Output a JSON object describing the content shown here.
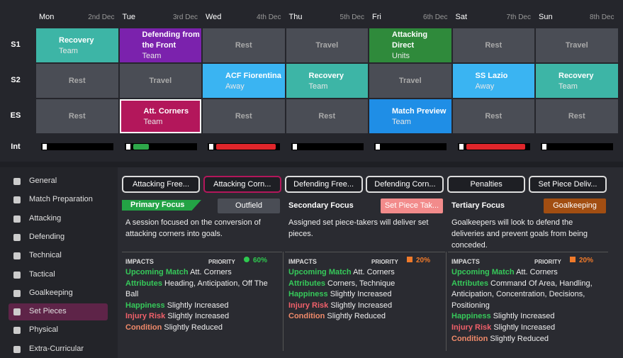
{
  "schedule": {
    "days": [
      {
        "name": "Mon",
        "date": "2nd Dec"
      },
      {
        "name": "Tue",
        "date": "3rd Dec"
      },
      {
        "name": "Wed",
        "date": "4th Dec"
      },
      {
        "name": "Thu",
        "date": "5th Dec"
      },
      {
        "name": "Fri",
        "date": "6th Dec"
      },
      {
        "name": "Sat",
        "date": "7th Dec"
      },
      {
        "name": "Sun",
        "date": "8th Dec"
      }
    ],
    "rows": [
      {
        "label": "S1",
        "cells": [
          {
            "title": "Recovery",
            "sub": "Team",
            "color": "#3db5a6"
          },
          {
            "title": "Defending from the Front",
            "sub": "Team",
            "color": "#7b22ad"
          },
          {
            "title": "Rest",
            "color": "#4a4d55"
          },
          {
            "title": "Travel",
            "color": "#4a4d55"
          },
          {
            "title": "Attacking Direct",
            "sub": "Units",
            "color": "#2f8a3b"
          },
          {
            "title": "Rest",
            "color": "#4a4d55"
          },
          {
            "title": "Travel",
            "color": "#4a4d55"
          }
        ]
      },
      {
        "label": "S2",
        "cells": [
          {
            "title": "Rest",
            "color": "#4a4d55"
          },
          {
            "title": "Travel",
            "color": "#4a4d55"
          },
          {
            "title": "ACF Fiorentina",
            "sub": "Away",
            "color": "#3ab4f2"
          },
          {
            "title": "Recovery",
            "sub": "Team",
            "color": "#3db5a6"
          },
          {
            "title": "Travel",
            "color": "#4a4d55"
          },
          {
            "title": "SS Lazio",
            "sub": "Away",
            "color": "#3ab4f2"
          },
          {
            "title": "Recovery",
            "sub": "Team",
            "color": "#3db5a6"
          }
        ]
      },
      {
        "label": "ES",
        "cells": [
          {
            "title": "Rest",
            "color": "#4a4d55"
          },
          {
            "title": "Att. Corners",
            "sub": "Team",
            "color": "#b3175b"
          },
          {
            "title": "Rest",
            "color": "#4a4d55"
          },
          {
            "title": "Rest",
            "color": "#4a4d55"
          },
          {
            "title": "Match Preview",
            "sub": "Team",
            "color": "#1f8ee6"
          },
          {
            "title": "Rest",
            "color": "#4a4d55"
          },
          {
            "title": "Rest",
            "color": "#4a4d55"
          }
        ]
      }
    ],
    "intensity_label": "Int",
    "intensity_values": [
      0,
      25,
      95,
      0,
      0,
      95,
      0
    ],
    "intensity_colors": [
      "#2ea84a",
      "#2ea84a",
      "#e0262b",
      "#2ea84a",
      "#2ea84a",
      "#e0262b",
      "#2ea84a"
    ]
  },
  "sidebar": {
    "items": [
      "General",
      "Match Preparation",
      "Attacking",
      "Defending",
      "Technical",
      "Tactical",
      "Goalkeeping",
      "Set Pieces",
      "Physical",
      "Extra-Curricular"
    ],
    "selected": 7
  },
  "tabs": {
    "items": [
      "Attacking Free...",
      "Attacking Corn...",
      "Defending Free...",
      "Defending Corn...",
      "Penalties",
      "Set Piece Deliv..."
    ],
    "selected": 1
  },
  "focus": [
    {
      "heading": "Primary Focus",
      "button": "Outfield",
      "button_color": "#4a4d55",
      "description": "A session focused on the conversion of attacking corners into goals.",
      "impacts": "IMPACTS",
      "priority_label": "PRIORITY",
      "priority": "60%",
      "rows": [
        {
          "label": "Upcoming Match",
          "text": "Att. Corners",
          "color": "#36c95a"
        },
        {
          "label": "Attributes",
          "text": "Heading, Anticipation, Off The Ball",
          "color": "#36c95a"
        },
        {
          "label": "Happiness",
          "text": "Slightly Increased",
          "color": "#36c95a"
        },
        {
          "label": "Injury Risk",
          "text": "Slightly Increased",
          "color": "#f0606a"
        },
        {
          "label": "Condition",
          "text": "Slightly Reduced",
          "color": "#f08a6a"
        }
      ]
    },
    {
      "heading": "Secondary Focus",
      "button": "Set Piece Tak...",
      "button_color": "#f28b8b",
      "description": "Assigned set piece-takers will deliver set pieces.",
      "impacts": "IMPACTS",
      "priority_label": "PRIORITY",
      "priority": "20%",
      "rows": [
        {
          "label": "Upcoming Match",
          "text": "Att. Corners",
          "color": "#36c95a"
        },
        {
          "label": "Attributes",
          "text": "Corners, Technique",
          "color": "#36c95a"
        },
        {
          "label": "Happiness",
          "text": "Slightly Increased",
          "color": "#36c95a"
        },
        {
          "label": "Injury Risk",
          "text": "Slightly Increased",
          "color": "#f0606a"
        },
        {
          "label": "Condition",
          "text": "Slightly Reduced",
          "color": "#f08a6a"
        }
      ]
    },
    {
      "heading": "Tertiary Focus",
      "button": "Goalkeeping",
      "button_color": "#a24e12",
      "description": "Goalkeepers will look to defend the deliveries and prevent goals from being conceded.",
      "impacts": "IMPACTS",
      "priority_label": "PRIORITY",
      "priority": "20%",
      "rows": [
        {
          "label": "Upcoming Match",
          "text": "Att. Corners",
          "color": "#36c95a"
        },
        {
          "label": "Attributes",
          "text": "Command Of Area, Handling, Anticipation, Concentration, Decisions, Positioning",
          "color": "#36c95a"
        },
        {
          "label": "Happiness",
          "text": "Slightly Increased",
          "color": "#36c95a"
        },
        {
          "label": "Injury Risk",
          "text": "Slightly Increased",
          "color": "#f0606a"
        },
        {
          "label": "Condition",
          "text": "Slightly Reduced",
          "color": "#f08a6a"
        }
      ]
    }
  ]
}
